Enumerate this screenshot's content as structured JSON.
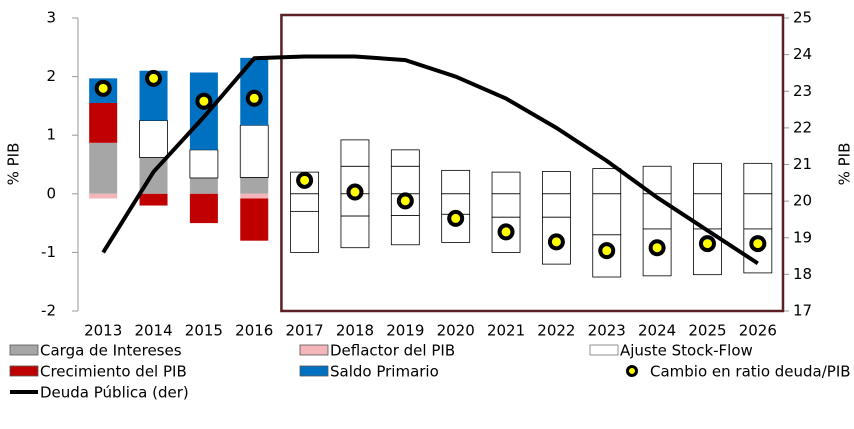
{
  "chart_data": {
    "type": "bar",
    "categories": [
      "2013",
      "2014",
      "2015",
      "2016",
      "2017",
      "2018",
      "2019",
      "2020",
      "2021",
      "2022",
      "2023",
      "2024",
      "2025",
      "2026"
    ],
    "series": [
      {
        "name": "Carga de Intereses",
        "color": "#a6a6a6",
        "values": [
          0.87,
          0.62,
          0.27,
          0.28,
          0.37,
          0.47,
          0.47,
          0.4,
          0.37,
          0.38,
          0.43,
          0.47,
          0.52,
          0.52
        ]
      },
      {
        "name": "Deflactor del PIB",
        "color": "#f4b6bb",
        "values": [
          -0.08,
          0,
          0,
          -0.08,
          0,
          0,
          0,
          0,
          0,
          0,
          0,
          0,
          0,
          0
        ]
      },
      {
        "name": "Ajuste Stock-Flow",
        "color": "#ffffff",
        "values": [
          0,
          0.63,
          0.48,
          0.89,
          0,
          0.45,
          0.28,
          0,
          0,
          0,
          0,
          0,
          0,
          0
        ]
      },
      {
        "name": "Crecimiento del PIB",
        "color": "#c00000",
        "values": [
          0.68,
          -0.2,
          -0.5,
          -0.72,
          -0.3,
          -0.38,
          -0.37,
          -0.35,
          -0.4,
          -0.4,
          -0.7,
          -0.6,
          -0.6,
          -0.6
        ]
      },
      {
        "name": "Saldo Primario",
        "color": "#0070c0",
        "values": [
          0.42,
          0.85,
          1.32,
          1.15,
          -0.7,
          -0.54,
          -0.5,
          -0.48,
          -0.6,
          -0.8,
          -0.72,
          -0.8,
          -0.78,
          -0.75
        ]
      },
      {
        "name": "Cambio en ratio deuda/PIB",
        "type": "dot",
        "color": "#ffff00",
        "values": [
          1.8,
          1.97,
          1.58,
          1.63,
          0.23,
          0.03,
          -0.12,
          -0.42,
          -0.65,
          -0.82,
          -0.97,
          -0.92,
          -0.85,
          -0.85
        ]
      },
      {
        "name": "Deuda Pública (der)",
        "type": "line",
        "axis": "y2",
        "color": "#000000",
        "values": [
          18.6,
          20.8,
          22.3,
          23.9,
          23.95,
          23.95,
          23.85,
          23.4,
          22.8,
          22.0,
          21.1,
          20.1,
          19.2,
          18.3
        ]
      }
    ],
    "ylabel": "% PIB",
    "y2label": "% PIB",
    "ylim": [
      -2,
      3
    ],
    "yticks": [
      -2,
      -1,
      0,
      1,
      2,
      3
    ],
    "y2lim": [
      17,
      25
    ],
    "y2ticks": [
      17,
      18,
      19,
      20,
      21,
      22,
      23,
      24,
      25
    ],
    "highlight": {
      "from": "2017",
      "to": "2026",
      "color": "#5c1f24"
    }
  }
}
